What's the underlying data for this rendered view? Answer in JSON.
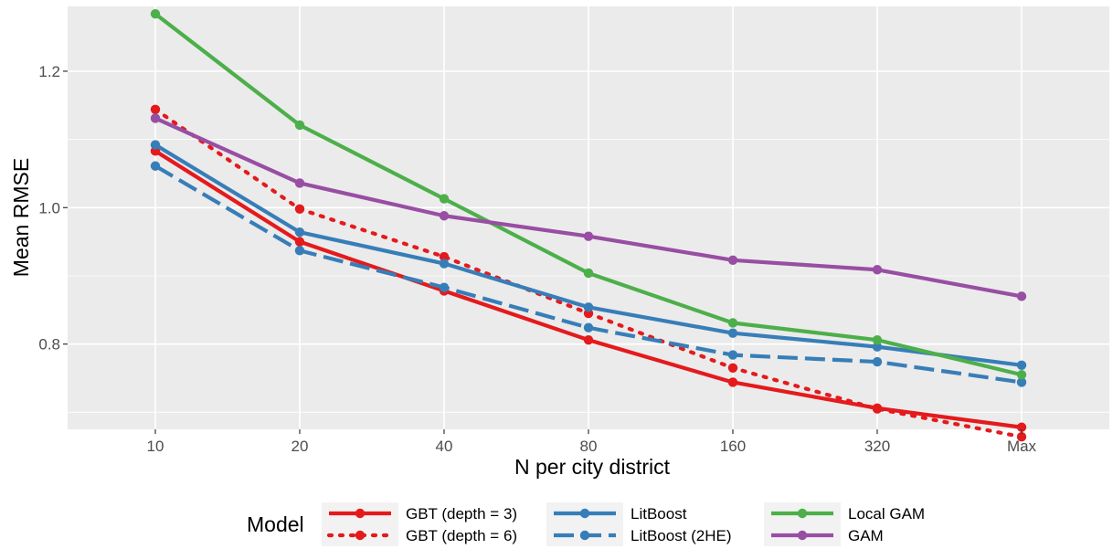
{
  "chart_data": {
    "type": "line",
    "xlabel": "N per city district",
    "ylabel": "Mean RMSE",
    "categories": [
      "10",
      "20",
      "40",
      "80",
      "160",
      "320",
      "Max"
    ],
    "yticks": [
      0.8,
      1.0,
      1.2
    ],
    "ytick_labels": [
      "0.8",
      "1.0",
      "1.2"
    ],
    "ylim": [
      0.675,
      1.295
    ],
    "grid": true,
    "legend": {
      "title": "Model",
      "position": "bottom"
    },
    "series": [
      {
        "name": "GBT (depth = 3)",
        "color": "#e41a1c",
        "dash": "solid",
        "values": [
          1.083,
          0.95,
          0.878,
          0.806,
          0.744,
          0.706,
          0.678
        ]
      },
      {
        "name": "GBT (depth = 6)",
        "color": "#e41a1c",
        "dash": "dotted",
        "values": [
          1.144,
          0.998,
          0.928,
          0.845,
          0.765,
          0.705,
          0.664
        ]
      },
      {
        "name": "LitBoost",
        "color": "#377eb8",
        "dash": "solid",
        "values": [
          1.092,
          0.964,
          0.918,
          0.854,
          0.816,
          0.796,
          0.769
        ]
      },
      {
        "name": "LitBoost (2HE)",
        "color": "#377eb8",
        "dash": "dashed",
        "values": [
          1.061,
          0.937,
          0.883,
          0.824,
          0.784,
          0.774,
          0.744
        ]
      },
      {
        "name": "Local GAM",
        "color": "#4daf4a",
        "dash": "solid",
        "values": [
          1.284,
          1.121,
          1.013,
          0.904,
          0.831,
          0.806,
          0.755
        ]
      },
      {
        "name": "GAM",
        "color": "#984ea3",
        "dash": "solid",
        "values": [
          1.131,
          1.036,
          0.988,
          0.958,
          0.923,
          0.909,
          0.87
        ]
      }
    ]
  }
}
